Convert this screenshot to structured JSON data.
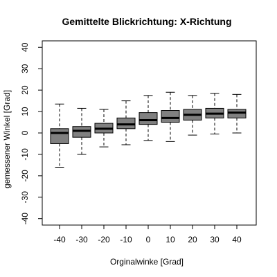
{
  "chart_data": {
    "type": "boxplot",
    "title": "Gemittelte Blickrichtung: X-Richtung",
    "xlabel": "Orginalwinke [Grad]",
    "ylabel": "gemessener Winkel [Grad]",
    "categories": [
      "-40",
      "-30",
      "-20",
      "-10",
      "0",
      "10",
      "20",
      "30",
      "40"
    ],
    "ylim": [
      -43,
      43
    ],
    "yticks": [
      -40,
      -30,
      -20,
      -10,
      0,
      10,
      20,
      30,
      40
    ],
    "ytick_labels": [
      "-40",
      "-30",
      "-20",
      "-10",
      "0",
      "10",
      "20",
      "30",
      "40"
    ],
    "box_color": "#808080",
    "series": [
      {
        "name": "-40",
        "min": -16,
        "q1": -5,
        "median": 0,
        "q3": 2,
        "max": 13.5
      },
      {
        "name": "-30",
        "min": -10,
        "q1": -2,
        "median": 1,
        "q3": 3,
        "max": 11.5
      },
      {
        "name": "-20",
        "min": -6.5,
        "q1": 0,
        "median": 2,
        "q3": 4.5,
        "max": 11
      },
      {
        "name": "-10",
        "min": -5.5,
        "q1": 2,
        "median": 4,
        "q3": 7,
        "max": 15
      },
      {
        "name": "0",
        "min": -3.5,
        "q1": 4,
        "median": 6,
        "q3": 9.5,
        "max": 17.5
      },
      {
        "name": "10",
        "min": -4,
        "q1": 5,
        "median": 7,
        "q3": 10.5,
        "max": 19
      },
      {
        "name": "20",
        "min": -1,
        "q1": 6,
        "median": 8.5,
        "q3": 11,
        "max": 17.5
      },
      {
        "name": "30",
        "min": -0.5,
        "q1": 7,
        "median": 9,
        "q3": 11.5,
        "max": 18.5
      },
      {
        "name": "40",
        "min": 0,
        "q1": 7,
        "median": 9.5,
        "q3": 11,
        "max": 18
      }
    ]
  }
}
